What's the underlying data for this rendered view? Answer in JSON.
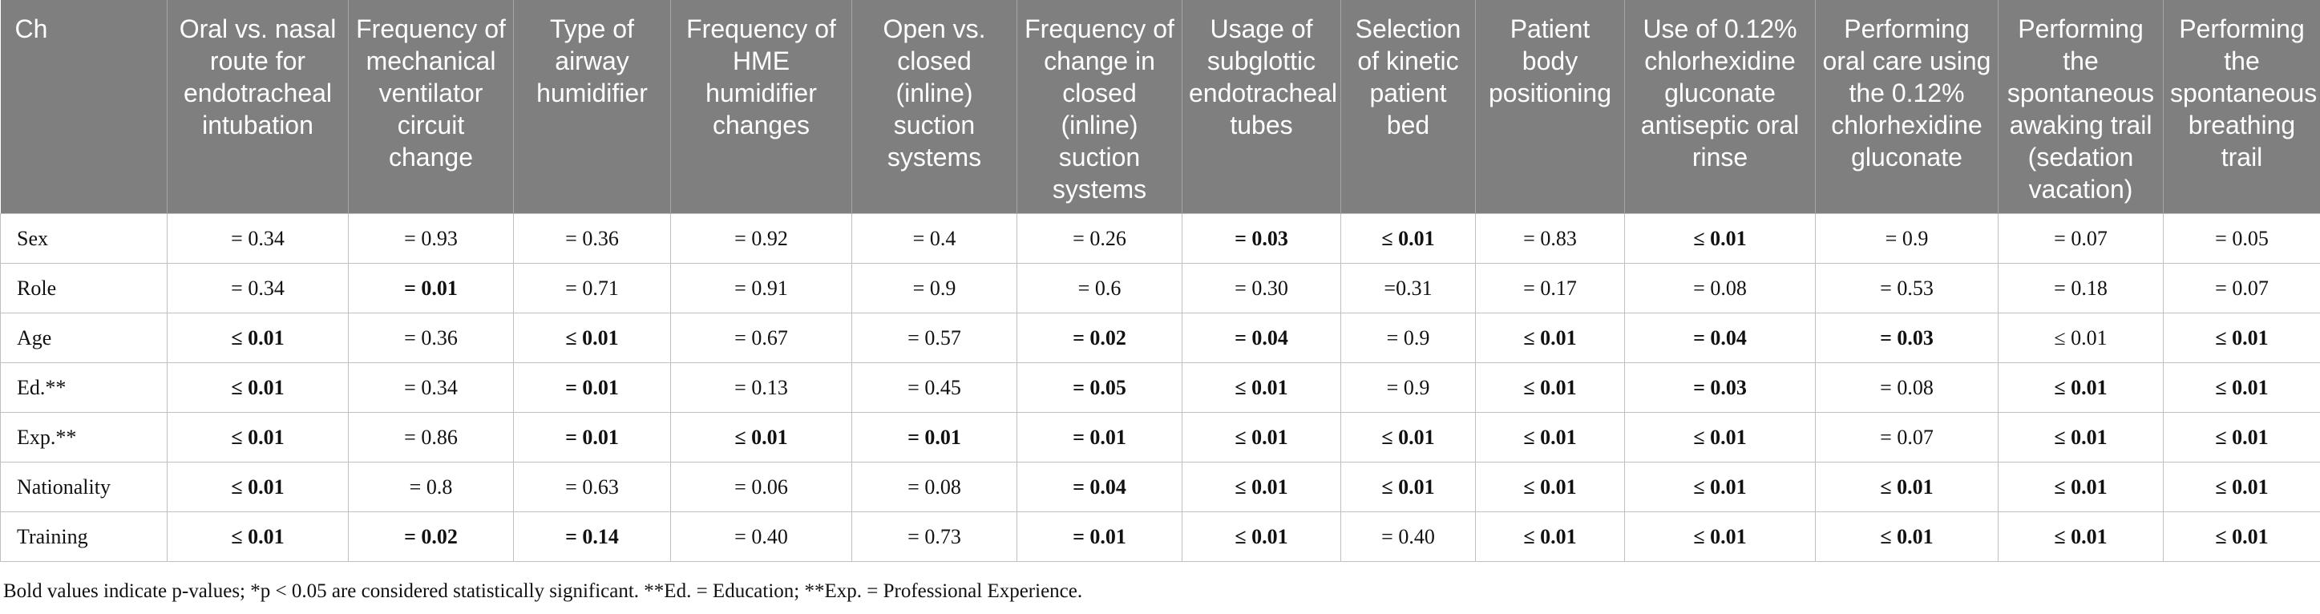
{
  "table": {
    "headers": [
      "Ch",
      "Oral vs. nasal route for endotracheal intubation",
      "Frequency of mechanical ventilator circuit change",
      "Type of airway humidifier",
      "Frequency of HME humidifier changes",
      "Open vs. closed (inline) suction systems",
      "Frequency of change in closed (inline) suction systems",
      "Usage of subglottic endotracheal tubes",
      "Selection of kinetic patient bed",
      "Patient body positioning",
      "Use of 0.12% chlorhexidine gluconate antiseptic oral rinse",
      "Performing oral care using the 0.12% chlorhexidine gluconate",
      "Performing the spontaneous awaking trail (sedation vacation)",
      "Performing the spontaneous breathing trail"
    ],
    "rows": [
      {
        "label": "Sex",
        "cells": [
          {
            "v": "= 0.34",
            "b": false
          },
          {
            "v": "= 0.93",
            "b": false
          },
          {
            "v": "= 0.36",
            "b": false
          },
          {
            "v": "= 0.92",
            "b": false
          },
          {
            "v": "= 0.4",
            "b": false
          },
          {
            "v": "= 0.26",
            "b": false
          },
          {
            "v": "= 0.03",
            "b": true
          },
          {
            "v": "≤ 0.01",
            "b": true
          },
          {
            "v": "= 0.83",
            "b": false
          },
          {
            "v": "≤ 0.01",
            "b": true
          },
          {
            "v": "= 0.9",
            "b": false
          },
          {
            "v": "= 0.07",
            "b": false
          },
          {
            "v": "= 0.05",
            "b": false
          }
        ]
      },
      {
        "label": "Role",
        "cells": [
          {
            "v": "= 0.34",
            "b": false
          },
          {
            "v": "= 0.01",
            "b": true
          },
          {
            "v": "= 0.71",
            "b": false
          },
          {
            "v": "= 0.91",
            "b": false
          },
          {
            "v": "= 0.9",
            "b": false
          },
          {
            "v": "= 0.6",
            "b": false
          },
          {
            "v": "= 0.30",
            "b": false
          },
          {
            "v": "=0.31",
            "b": false
          },
          {
            "v": "= 0.17",
            "b": false
          },
          {
            "v": "= 0.08",
            "b": false
          },
          {
            "v": "= 0.53",
            "b": false
          },
          {
            "v": "= 0.18",
            "b": false
          },
          {
            "v": "= 0.07",
            "b": false
          }
        ]
      },
      {
        "label": "Age",
        "cells": [
          {
            "v": "≤ 0.01",
            "b": true
          },
          {
            "v": "= 0.36",
            "b": false
          },
          {
            "v": "≤ 0.01",
            "b": true
          },
          {
            "v": "= 0.67",
            "b": false
          },
          {
            "v": "= 0.57",
            "b": false
          },
          {
            "v": "= 0.02",
            "b": true
          },
          {
            "v": "= 0.04",
            "b": true
          },
          {
            "v": "= 0.9",
            "b": false
          },
          {
            "v": "≤ 0.01",
            "b": true
          },
          {
            "v": "= 0.04",
            "b": true
          },
          {
            "v": "= 0.03",
            "b": true
          },
          {
            "v": "≤ 0.01",
            "b": false
          },
          {
            "v": "≤ 0.01",
            "b": true
          }
        ]
      },
      {
        "label": "Ed.**",
        "cells": [
          {
            "v": "≤ 0.01",
            "b": true
          },
          {
            "v": "= 0.34",
            "b": false
          },
          {
            "v": "= 0.01",
            "b": true
          },
          {
            "v": "= 0.13",
            "b": false
          },
          {
            "v": "= 0.45",
            "b": false
          },
          {
            "v": "= 0.05",
            "b": true
          },
          {
            "v": "≤ 0.01",
            "b": true
          },
          {
            "v": "= 0.9",
            "b": false
          },
          {
            "v": "≤ 0.01",
            "b": true
          },
          {
            "v": "= 0.03",
            "b": true
          },
          {
            "v": "= 0.08",
            "b": false
          },
          {
            "v": "≤ 0.01",
            "b": true
          },
          {
            "v": "≤ 0.01",
            "b": true
          }
        ]
      },
      {
        "label": "Exp.**",
        "cells": [
          {
            "v": "≤ 0.01",
            "b": true
          },
          {
            "v": "= 0.86",
            "b": false
          },
          {
            "v": "= 0.01",
            "b": true
          },
          {
            "v": "≤ 0.01",
            "b": true
          },
          {
            "v": "= 0.01",
            "b": true
          },
          {
            "v": "= 0.01",
            "b": true
          },
          {
            "v": "≤ 0.01",
            "b": true
          },
          {
            "v": "≤ 0.01",
            "b": true
          },
          {
            "v": "≤ 0.01",
            "b": true
          },
          {
            "v": "≤ 0.01",
            "b": true
          },
          {
            "v": "= 0.07",
            "b": false
          },
          {
            "v": "≤ 0.01",
            "b": true
          },
          {
            "v": "≤ 0.01",
            "b": true
          }
        ]
      },
      {
        "label": "Nationality",
        "cells": [
          {
            "v": "≤ 0.01",
            "b": true
          },
          {
            "v": "= 0.8",
            "b": false
          },
          {
            "v": "= 0.63",
            "b": false
          },
          {
            "v": "= 0.06",
            "b": false
          },
          {
            "v": "= 0.08",
            "b": false
          },
          {
            "v": "= 0.04",
            "b": true
          },
          {
            "v": "≤ 0.01",
            "b": true
          },
          {
            "v": "≤ 0.01",
            "b": true
          },
          {
            "v": "≤ 0.01",
            "b": true
          },
          {
            "v": "≤ 0.01",
            "b": true
          },
          {
            "v": "≤ 0.01",
            "b": true
          },
          {
            "v": "≤ 0.01",
            "b": true
          },
          {
            "v": "≤ 0.01",
            "b": true
          }
        ]
      },
      {
        "label": "Training",
        "cells": [
          {
            "v": "≤ 0.01",
            "b": true
          },
          {
            "v": "= 0.02",
            "b": true
          },
          {
            "v": "= 0.14",
            "b": true
          },
          {
            "v": "= 0.40",
            "b": false
          },
          {
            "v": "= 0.73",
            "b": false
          },
          {
            "v": "= 0.01",
            "b": true
          },
          {
            "v": "≤ 0.01",
            "b": true
          },
          {
            "v": "= 0.40",
            "b": false
          },
          {
            "v": "≤ 0.01",
            "b": true
          },
          {
            "v": "≤ 0.01",
            "b": true
          },
          {
            "v": "≤ 0.01",
            "b": true
          },
          {
            "v": "≤ 0.01",
            "b": true
          },
          {
            "v": "≤ 0.01",
            "b": true
          }
        ]
      }
    ]
  },
  "footnote": "Bold values indicate p-values; *p < 0.05 are considered statistically significant. **Ed. = Education; **Exp. = Professional Experience."
}
